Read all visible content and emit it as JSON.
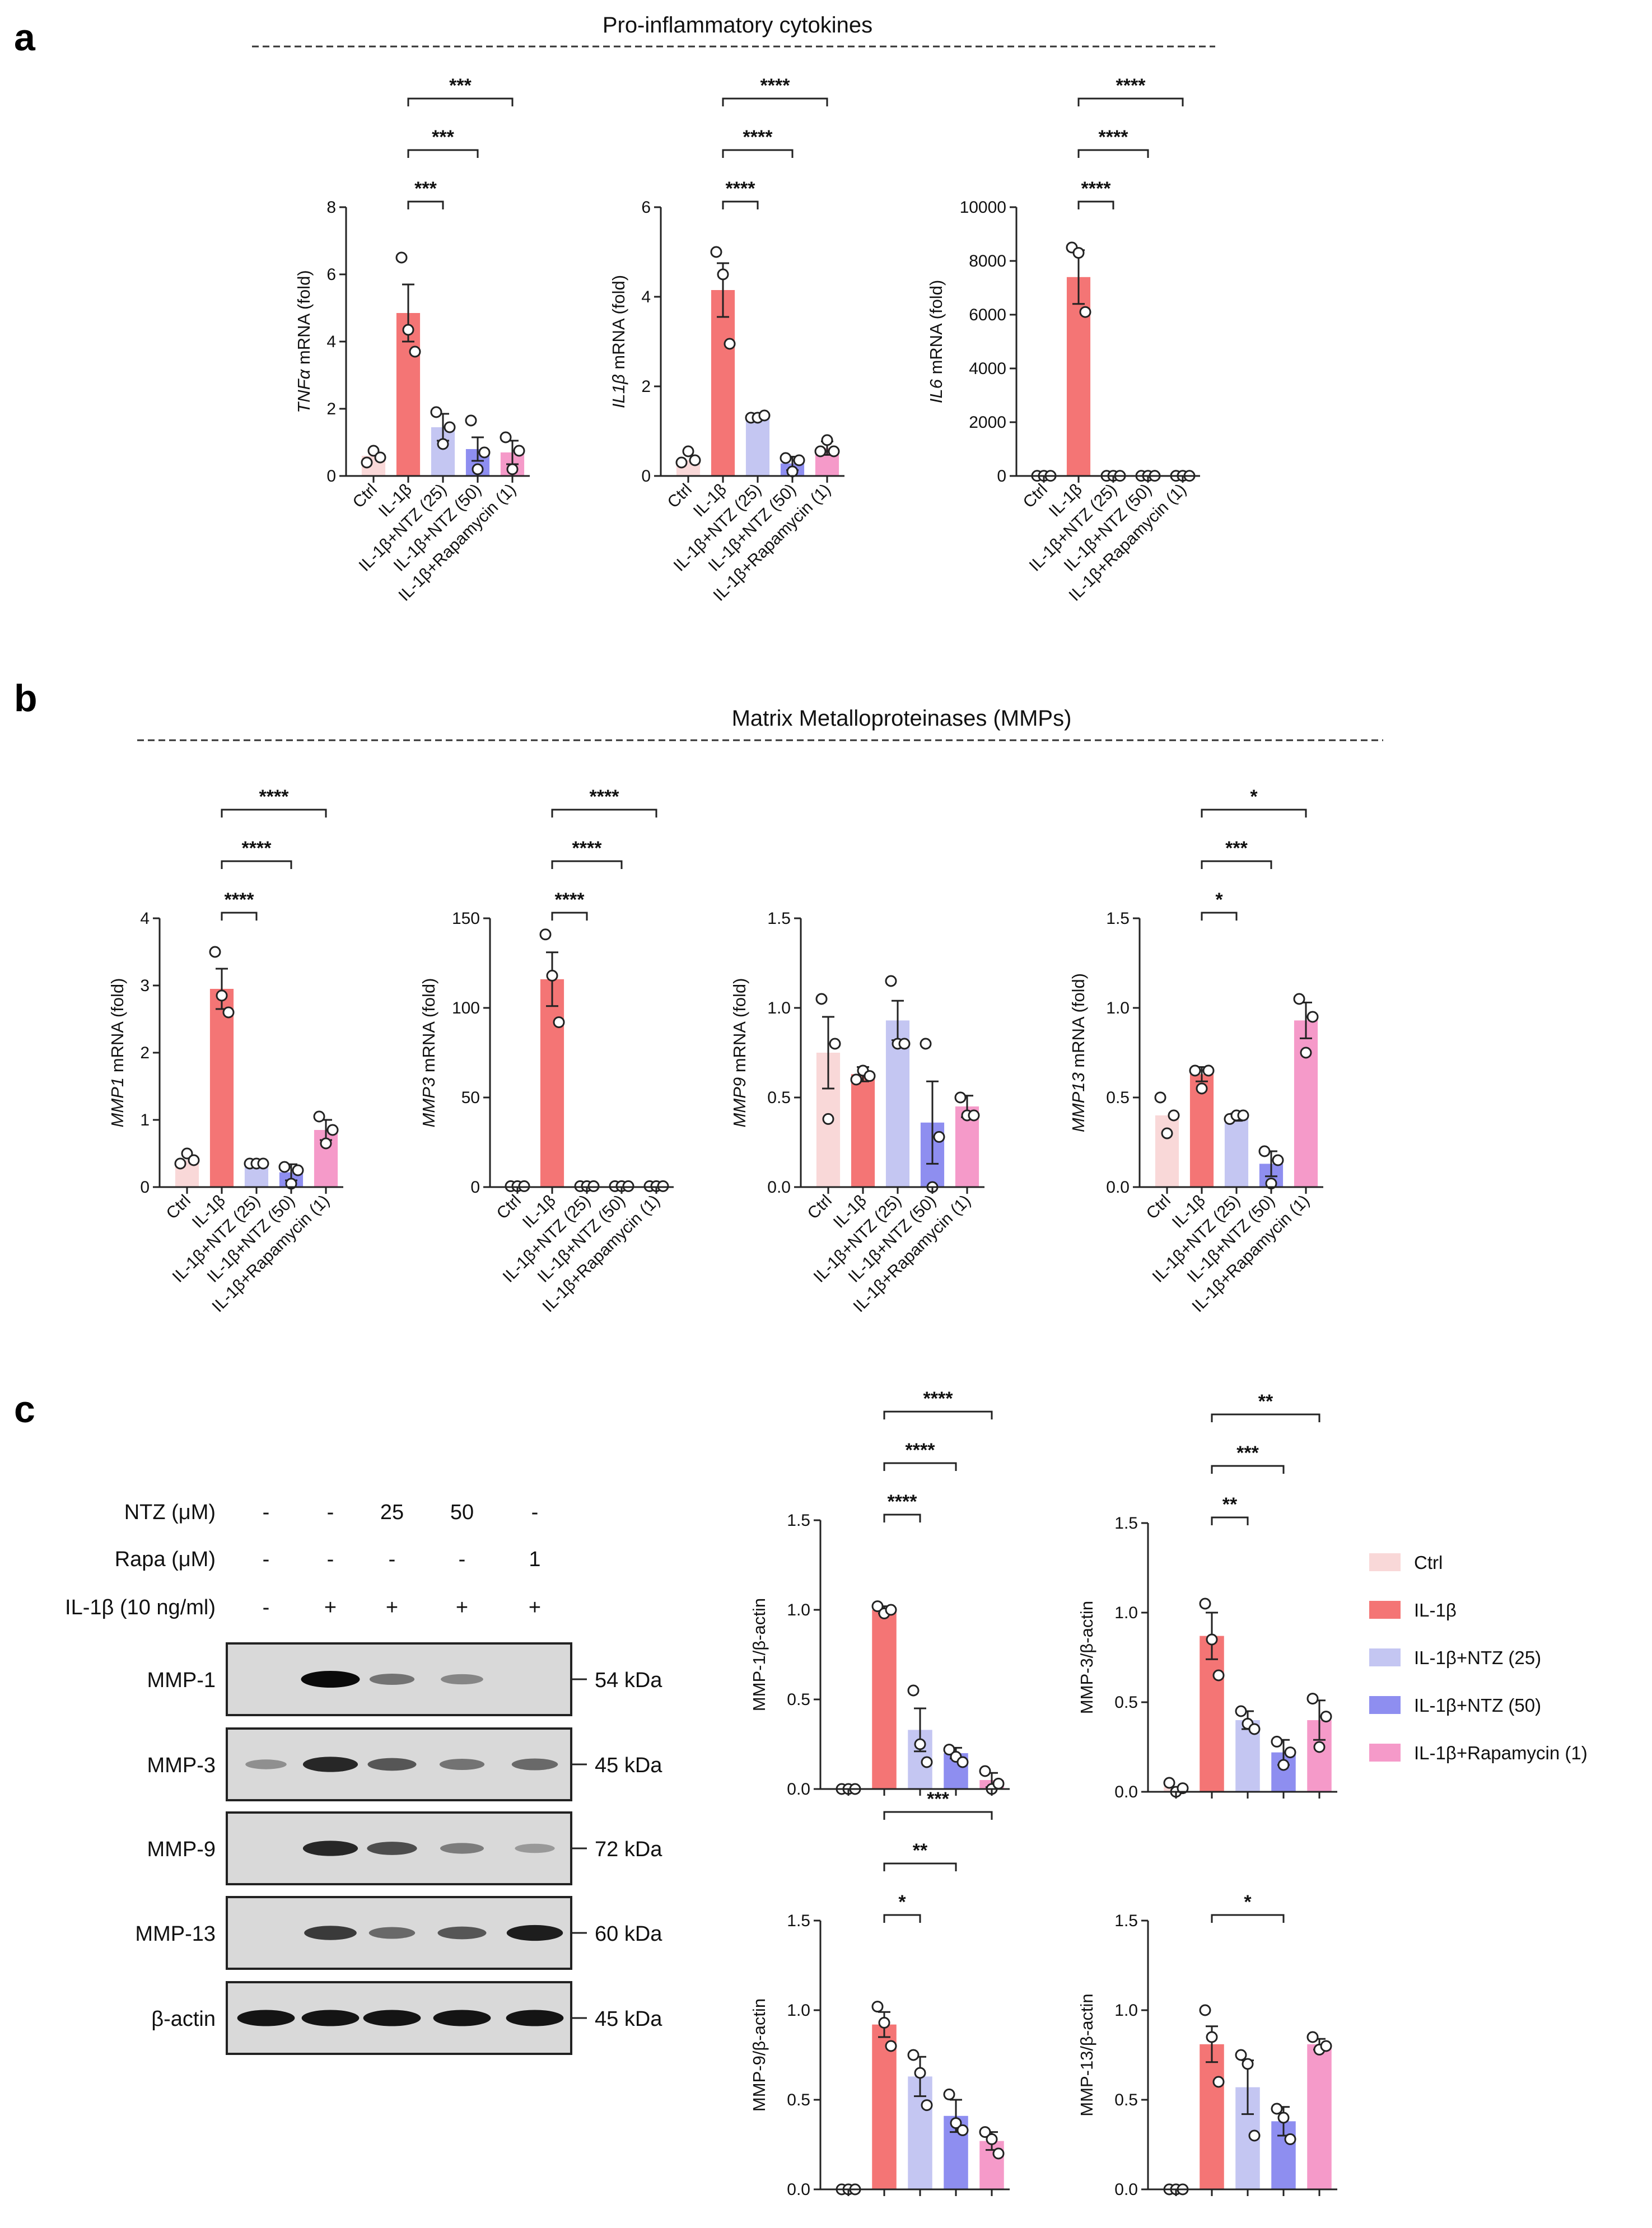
{
  "panel_labels": {
    "a": "a",
    "b": "b",
    "c": "c"
  },
  "section_titles": {
    "a": "Pro-inflammatory cytokines",
    "b": "Matrix Metalloproteinases (MMPs)"
  },
  "categories": [
    "Ctrl",
    "IL-1β",
    "IL-1β+NTZ (25)",
    "IL-1β+NTZ (50)",
    "IL-1β+Rapamycin (1)"
  ],
  "colors": {
    "Ctrl": "#f9d8d8",
    "IL-1β": "#f47575",
    "IL-1β+NTZ (25)": "#c4c6f2",
    "IL-1β+NTZ (50)": "#8e8ef0",
    "IL-1β+Rapamycin (1)": "#f59ac9"
  },
  "legend": [
    "Ctrl",
    "IL-1β",
    "IL-1β+NTZ (25)",
    "IL-1β+NTZ (50)",
    "IL-1β+Rapamycin (1)"
  ],
  "western_blot": {
    "conditions": [
      {
        "label": "NTZ (μM)",
        "values": [
          "-",
          "-",
          "25",
          "50",
          "-"
        ]
      },
      {
        "label": "Rapa (μM)",
        "values": [
          "-",
          "-",
          "-",
          "-",
          "1"
        ]
      },
      {
        "label": "IL-1β (10 ng/ml)",
        "values": [
          "-",
          "+",
          "+",
          "+",
          "+"
        ]
      }
    ],
    "bands": [
      {
        "name": "MMP-1",
        "size": "54 kDa",
        "intensity": [
          0.0,
          1.0,
          0.45,
          0.35,
          0.0
        ]
      },
      {
        "name": "MMP-3",
        "size": "45 kDa",
        "intensity": [
          0.3,
          0.85,
          0.6,
          0.45,
          0.5
        ]
      },
      {
        "name": "MMP-9",
        "size": "72 kDa",
        "intensity": [
          0.0,
          0.85,
          0.65,
          0.4,
          0.25
        ]
      },
      {
        "name": "MMP-13",
        "size": "60 kDa",
        "intensity": [
          0.0,
          0.75,
          0.5,
          0.6,
          0.9
        ]
      },
      {
        "name": "β-actin",
        "size": "45 kDa",
        "intensity": [
          0.95,
          0.95,
          0.95,
          0.95,
          0.95
        ]
      }
    ]
  },
  "chart_data": [
    {
      "id": "tnfa",
      "type": "bar",
      "panel": "a",
      "ylabel_gene": "TNFα",
      "ylabel_rest": " mRNA (fold)",
      "ylim": [
        0,
        8
      ],
      "yticks": [
        "0",
        "2",
        "4",
        "6",
        "8"
      ],
      "show_xlabels": true,
      "values": [
        0.6,
        4.85,
        1.45,
        0.8,
        0.7
      ],
      "errors": [
        0,
        0.85,
        0.4,
        0.35,
        0.35
      ],
      "points": [
        [
          0.4,
          0.75,
          0.55
        ],
        [
          6.5,
          4.35,
          3.7
        ],
        [
          1.9,
          0.95,
          1.45
        ],
        [
          1.65,
          0.2,
          0.7
        ],
        [
          1.15,
          0.2,
          0.75
        ]
      ],
      "comparisons": [
        {
          "from": 1,
          "to": 2,
          "stars": "***"
        },
        {
          "from": 1,
          "to": 3,
          "stars": "***"
        },
        {
          "from": 1,
          "to": 4,
          "stars": "***"
        }
      ]
    },
    {
      "id": "il1b",
      "type": "bar",
      "panel": "a",
      "ylabel_gene": "IL1β",
      "ylabel_rest": " mRNA (fold)",
      "ylim": [
        0,
        6
      ],
      "yticks": [
        "0",
        "2",
        "4",
        "6"
      ],
      "show_xlabels": true,
      "values": [
        0.35,
        4.15,
        1.3,
        0.28,
        0.62
      ],
      "errors": [
        0,
        0.6,
        0.05,
        0.15,
        0.15
      ],
      "points": [
        [
          0.3,
          0.55,
          0.35
        ],
        [
          5.0,
          4.5,
          2.95
        ],
        [
          1.3,
          1.3,
          1.35
        ],
        [
          0.4,
          0.1,
          0.35
        ],
        [
          0.55,
          0.8,
          0.55
        ]
      ],
      "comparisons": [
        {
          "from": 1,
          "to": 2,
          "stars": "****"
        },
        {
          "from": 1,
          "to": 3,
          "stars": "****"
        },
        {
          "from": 1,
          "to": 4,
          "stars": "****"
        }
      ]
    },
    {
      "id": "il6",
      "type": "bar",
      "panel": "a",
      "ylabel_gene": "IL6",
      "ylabel_rest": " mRNA (fold)",
      "ylim": [
        0,
        10000
      ],
      "yticks": [
        "0",
        "2000",
        "4000",
        "6000",
        "8000",
        "10000"
      ],
      "show_xlabels": true,
      "values": [
        10,
        7400,
        10,
        10,
        10
      ],
      "errors": [
        0,
        1000,
        0,
        0,
        0
      ],
      "points": [
        [
          5,
          5,
          5
        ],
        [
          8500,
          8300,
          6100
        ],
        [
          5,
          5,
          5
        ],
        [
          5,
          5,
          5
        ],
        [
          5,
          5,
          5
        ]
      ],
      "comparisons": [
        {
          "from": 1,
          "to": 2,
          "stars": "****"
        },
        {
          "from": 1,
          "to": 3,
          "stars": "****"
        },
        {
          "from": 1,
          "to": 4,
          "stars": "****"
        }
      ]
    },
    {
      "id": "mmp1",
      "type": "bar",
      "panel": "b",
      "ylabel_gene": "MMP1",
      "ylabel_rest": " mRNA (fold)",
      "ylim": [
        0,
        4
      ],
      "yticks": [
        "0",
        "1",
        "2",
        "3",
        "4"
      ],
      "show_xlabels": true,
      "values": [
        0.4,
        2.95,
        0.35,
        0.22,
        0.85
      ],
      "errors": [
        0,
        0.3,
        0.03,
        0.12,
        0.15
      ],
      "points": [
        [
          0.35,
          0.5,
          0.4
        ],
        [
          3.5,
          2.85,
          2.6
        ],
        [
          0.35,
          0.35,
          0.35
        ],
        [
          0.3,
          0.05,
          0.25
        ],
        [
          1.05,
          0.65,
          0.85
        ]
      ],
      "comparisons": [
        {
          "from": 1,
          "to": 2,
          "stars": "****"
        },
        {
          "from": 1,
          "to": 3,
          "stars": "****"
        },
        {
          "from": 1,
          "to": 4,
          "stars": "****"
        }
      ]
    },
    {
      "id": "mmp3",
      "type": "bar",
      "panel": "b",
      "ylabel_gene": "MMP3",
      "ylabel_rest": " mRNA (fold)",
      "ylim": [
        0,
        150
      ],
      "yticks": [
        "0",
        "50",
        "100",
        "150"
      ],
      "show_xlabels": true,
      "values": [
        1,
        116,
        1,
        1,
        1
      ],
      "errors": [
        0,
        15,
        0,
        0,
        0
      ],
      "points": [
        [
          0.5,
          0.5,
          0.5
        ],
        [
          141,
          118,
          92
        ],
        [
          0.5,
          0.5,
          0.5
        ],
        [
          0.5,
          0.5,
          0.5
        ],
        [
          0.5,
          0.5,
          0.5
        ]
      ],
      "comparisons": [
        {
          "from": 1,
          "to": 2,
          "stars": "****"
        },
        {
          "from": 1,
          "to": 3,
          "stars": "****"
        },
        {
          "from": 1,
          "to": 4,
          "stars": "****"
        }
      ]
    },
    {
      "id": "mmp9",
      "type": "bar",
      "panel": "b",
      "ylabel_gene": "MMP9",
      "ylabel_rest": " mRNA (fold)",
      "ylim": [
        0,
        1.5
      ],
      "yticks": [
        "0.0",
        "0.5",
        "1.0",
        "1.5"
      ],
      "show_xlabels": true,
      "values": [
        0.75,
        0.63,
        0.93,
        0.36,
        0.45
      ],
      "errors": [
        0.2,
        0.04,
        0.11,
        0.23,
        0.06
      ],
      "points": [
        [
          1.05,
          0.38,
          0.8
        ],
        [
          0.6,
          0.65,
          0.62
        ],
        [
          1.15,
          0.8,
          0.8
        ],
        [
          0.8,
          0.0,
          0.28
        ],
        [
          0.5,
          0.4,
          0.4
        ]
      ],
      "comparisons": []
    },
    {
      "id": "mmp13",
      "type": "bar",
      "panel": "b",
      "ylabel_gene": "MMP13",
      "ylabel_rest": " mRNA (fold)",
      "ylim": [
        0,
        1.5
      ],
      "yticks": [
        "0.0",
        "0.5",
        "1.0",
        "1.5"
      ],
      "show_xlabels": true,
      "values": [
        0.4,
        0.63,
        0.39,
        0.13,
        0.93
      ],
      "errors": [
        0,
        0.04,
        0.02,
        0.07,
        0.1
      ],
      "points": [
        [
          0.5,
          0.3,
          0.4
        ],
        [
          0.65,
          0.55,
          0.65
        ],
        [
          0.38,
          0.4,
          0.4
        ],
        [
          0.2,
          0.02,
          0.15
        ],
        [
          1.05,
          0.75,
          0.95
        ]
      ],
      "comparisons": [
        {
          "from": 1,
          "to": 2,
          "stars": "*"
        },
        {
          "from": 1,
          "to": 3,
          "stars": "***"
        },
        {
          "from": 1,
          "to": 4,
          "stars": "*"
        }
      ]
    },
    {
      "id": "wb_mmp1",
      "type": "bar",
      "panel": "c",
      "ylabel_gene": "",
      "ylabel_rest": "MMP-1/β-actin",
      "ylim": [
        0,
        1.5
      ],
      "yticks": [
        "0.0",
        "0.5",
        "1.0",
        "1.5"
      ],
      "show_xlabels": false,
      "values": [
        0.0,
        1.0,
        0.33,
        0.2,
        0.05
      ],
      "errors": [
        0,
        0.02,
        0.12,
        0.03,
        0.04
      ],
      "points": [
        [
          0.0,
          0.0,
          0.0
        ],
        [
          1.02,
          0.98,
          1.0
        ],
        [
          0.55,
          0.25,
          0.15
        ],
        [
          0.22,
          0.18,
          0.15
        ],
        [
          0.1,
          0.0,
          0.03
        ]
      ],
      "comparisons": [
        {
          "from": 1,
          "to": 2,
          "stars": "****"
        },
        {
          "from": 1,
          "to": 3,
          "stars": "****"
        },
        {
          "from": 1,
          "to": 4,
          "stars": "****"
        }
      ]
    },
    {
      "id": "wb_mmp3",
      "type": "bar",
      "panel": "c",
      "ylabel_gene": "",
      "ylabel_rest": "MMP-3/β-actin",
      "ylim": [
        0,
        1.5
      ],
      "yticks": [
        "0.0",
        "0.5",
        "1.0",
        "1.5"
      ],
      "show_xlabels": false,
      "values": [
        0.03,
        0.87,
        0.4,
        0.22,
        0.4
      ],
      "errors": [
        0,
        0.13,
        0.05,
        0.07,
        0.11
      ],
      "points": [
        [
          0.05,
          0.0,
          0.02
        ],
        [
          1.05,
          0.85,
          0.65
        ],
        [
          0.45,
          0.38,
          0.35
        ],
        [
          0.28,
          0.15,
          0.22
        ],
        [
          0.52,
          0.25,
          0.42
        ]
      ],
      "comparisons": [
        {
          "from": 1,
          "to": 2,
          "stars": "**"
        },
        {
          "from": 1,
          "to": 3,
          "stars": "***"
        },
        {
          "from": 1,
          "to": 4,
          "stars": "**"
        }
      ]
    },
    {
      "id": "wb_mmp9",
      "type": "bar",
      "panel": "c",
      "ylabel_gene": "",
      "ylabel_rest": "MMP-9/β-actin",
      "ylim": [
        0,
        1.5
      ],
      "yticks": [
        "0.0",
        "0.5",
        "1.0",
        "1.5"
      ],
      "show_xlabels": false,
      "values": [
        0.0,
        0.92,
        0.63,
        0.41,
        0.27
      ],
      "errors": [
        0,
        0.07,
        0.11,
        0.09,
        0.05
      ],
      "points": [
        [
          0.0,
          0.0,
          0.0
        ],
        [
          1.02,
          0.93,
          0.8
        ],
        [
          0.75,
          0.65,
          0.47
        ],
        [
          0.53,
          0.37,
          0.33
        ],
        [
          0.32,
          0.28,
          0.2
        ]
      ],
      "comparisons": [
        {
          "from": 1,
          "to": 2,
          "stars": "*"
        },
        {
          "from": 1,
          "to": 3,
          "stars": "**"
        },
        {
          "from": 1,
          "to": 4,
          "stars": "***"
        }
      ]
    },
    {
      "id": "wb_mmp13",
      "type": "bar",
      "panel": "c",
      "ylabel_gene": "",
      "ylabel_rest": "MMP-13/β-actin",
      "ylim": [
        0,
        1.5
      ],
      "yticks": [
        "0.0",
        "0.5",
        "1.0",
        "1.5"
      ],
      "show_xlabels": false,
      "values": [
        0.0,
        0.81,
        0.57,
        0.38,
        0.81
      ],
      "errors": [
        0,
        0.1,
        0.15,
        0.08,
        0.03
      ],
      "points": [
        [
          0.0,
          0.0,
          0.0
        ],
        [
          1.0,
          0.85,
          0.6
        ],
        [
          0.75,
          0.7,
          0.3
        ],
        [
          0.45,
          0.4,
          0.28
        ],
        [
          0.85,
          0.78,
          0.8
        ]
      ],
      "comparisons": [
        {
          "from": 1,
          "to": 3,
          "stars": "*"
        }
      ]
    }
  ]
}
